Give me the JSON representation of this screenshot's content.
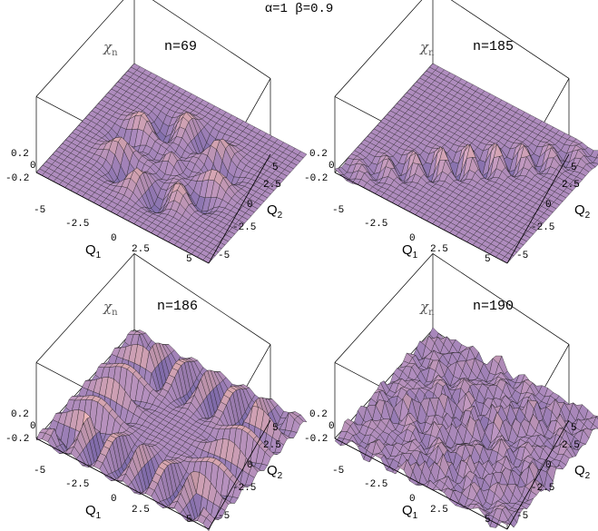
{
  "figure_title": "α=1 β=0.9",
  "chart_data": [
    {
      "type": "surface",
      "function_label": "χ",
      "function_sub": "n",
      "n_label": "n=69",
      "n": 69,
      "xlabel": "Q",
      "xlabel_sub": "1",
      "ylabel": "Q",
      "ylabel_sub": "2",
      "xlim": [
        -5,
        5
      ],
      "ylim": [
        -5,
        5
      ],
      "zlim": [
        -0.2,
        0.2
      ],
      "x_ticks": [
        "-5",
        "-2.5",
        "0",
        "2.5",
        "5"
      ],
      "y_ticks": [
        "5",
        "2.5",
        "0",
        "-2.5",
        "-5"
      ],
      "z_ticks": [
        "0.2",
        "0",
        "-0.2"
      ],
      "pattern": "ring"
    },
    {
      "type": "surface",
      "function_label": "χ",
      "function_sub": "n",
      "n_label": "n=185",
      "n": 185,
      "xlabel": "Q",
      "xlabel_sub": "1",
      "ylabel": "Q",
      "ylabel_sub": "2",
      "xlim": [
        -5,
        5
      ],
      "ylim": [
        -5,
        5
      ],
      "zlim": [
        -0.2,
        0.2
      ],
      "x_ticks": [
        "-5",
        "-2.5",
        "0",
        "2.5",
        "5"
      ],
      "y_ticks": [
        "5",
        "2.5",
        "0",
        "-2.5",
        "-5"
      ],
      "z_ticks": [
        "0.2",
        "0",
        "-0.2"
      ],
      "pattern": "line"
    },
    {
      "type": "surface",
      "function_label": "χ",
      "function_sub": "n",
      "n_label": "n=186",
      "n": 186,
      "xlabel": "Q",
      "xlabel_sub": "1",
      "ylabel": "Q",
      "ylabel_sub": "2",
      "xlim": [
        -5,
        5
      ],
      "ylim": [
        -5,
        5
      ],
      "zlim": [
        -0.2,
        0.2
      ],
      "x_ticks": [
        "-5",
        "-2.5",
        "0",
        "2.5",
        "5"
      ],
      "y_ticks": [
        "5",
        "2.5",
        "0",
        "-2.5",
        "-5"
      ],
      "z_ticks": [
        "0.2",
        "0",
        "-0.2"
      ],
      "pattern": "square"
    },
    {
      "type": "surface",
      "function_label": "χ",
      "function_sub": "n",
      "n_label": "n=190",
      "n": 190,
      "xlabel": "Q",
      "xlabel_sub": "1",
      "ylabel": "Q",
      "ylabel_sub": "2",
      "xlim": [
        -5,
        5
      ],
      "ylim": [
        -5,
        5
      ],
      "zlim": [
        -0.2,
        0.2
      ],
      "x_ticks": [
        "-5",
        "-2.5",
        "0",
        "2.5",
        "5"
      ],
      "y_ticks": [
        "5",
        "2.5",
        "0",
        "-2.5",
        "-5"
      ],
      "z_ticks": [
        "0.2",
        "0",
        "-0.2"
      ],
      "pattern": "chaotic"
    }
  ]
}
